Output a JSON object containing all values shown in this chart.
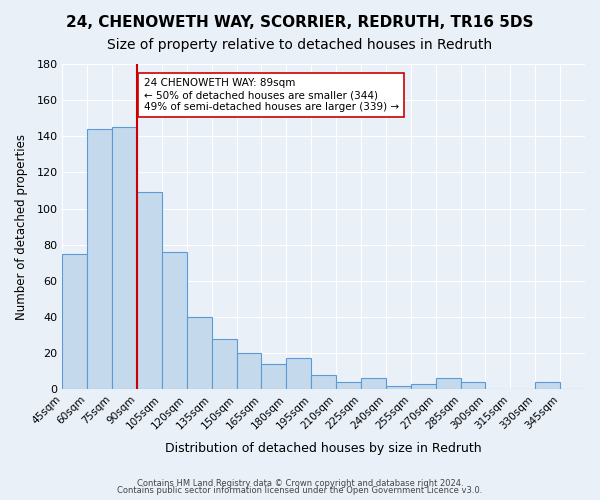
{
  "title": "24, CHENOWETH WAY, SCORRIER, REDRUTH, TR16 5DS",
  "subtitle": "Size of property relative to detached houses in Redruth",
  "xlabel": "Distribution of detached houses by size in Redruth",
  "ylabel": "Number of detached properties",
  "footer_line1": "Contains HM Land Registry data © Crown copyright and database right 2024.",
  "footer_line2": "Contains public sector information licensed under the Open Government Licence v3.0.",
  "bin_labels": [
    "45sqm",
    "60sqm",
    "75sqm",
    "90sqm",
    "105sqm",
    "120sqm",
    "135sqm",
    "150sqm",
    "165sqm",
    "180sqm",
    "195sqm",
    "210sqm",
    "225sqm",
    "240sqm",
    "255sqm",
    "270sqm",
    "285sqm",
    "300sqm",
    "315sqm",
    "330sqm",
    "345sqm"
  ],
  "bin_edges": [
    45,
    60,
    75,
    90,
    105,
    120,
    135,
    150,
    165,
    180,
    195,
    210,
    225,
    240,
    255,
    270,
    285,
    300,
    315,
    330,
    345,
    360
  ],
  "bar_values": [
    75,
    144,
    145,
    109,
    76,
    40,
    28,
    20,
    14,
    17,
    8,
    4,
    6,
    2,
    3,
    6,
    4,
    0,
    0,
    4,
    0
  ],
  "bar_color": "#c5d9ed",
  "bar_edge_color": "#5b9bd5",
  "property_bin_edge": 90,
  "vline_color": "#cc0000",
  "annotation_text": "24 CHENOWETH WAY: 89sqm\n← 50% of detached houses are smaller (344)\n49% of semi-detached houses are larger (339) →",
  "annotation_box_color": "white",
  "annotation_box_edge_color": "#cc0000",
  "ylim": [
    0,
    180
  ],
  "yticks": [
    0,
    20,
    40,
    60,
    80,
    100,
    120,
    140,
    160,
    180
  ],
  "bg_color": "#eaf0f8",
  "plot_bg_color": "#eaf0f8",
  "grid_color": "white",
  "title_fontsize": 11,
  "subtitle_fontsize": 10
}
